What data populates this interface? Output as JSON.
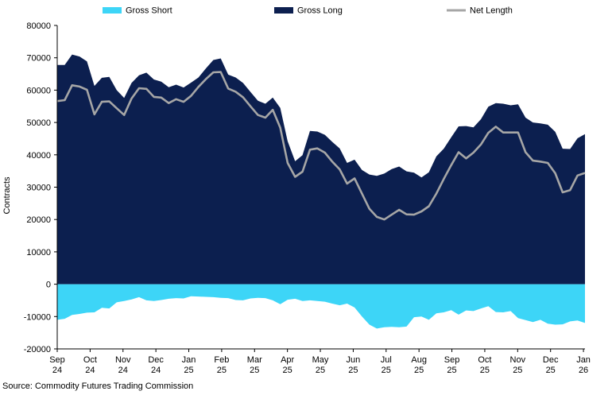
{
  "colors": {
    "gross_short": "#3dd5f7",
    "gross_long": "#0c1f4f",
    "net_length": "#a6a6a6"
  },
  "source": "Source: Commodity Futures Trading Commission",
  "chart_data": {
    "type": "area",
    "ylabel": "Contracts",
    "ylim": [
      -20000,
      80000
    ],
    "yticks": [
      80000,
      70000,
      60000,
      50000,
      40000,
      30000,
      20000,
      10000,
      0,
      -10000,
      -20000
    ],
    "xrange": [
      0,
      69
    ],
    "xticks": [
      {
        "i": 0,
        "line1": "Sep",
        "line2": "24"
      },
      {
        "i": 4.3,
        "line1": "Oct",
        "line2": "24"
      },
      {
        "i": 8.6,
        "line1": "Nov",
        "line2": "24"
      },
      {
        "i": 12.9,
        "line1": "Dec",
        "line2": "24"
      },
      {
        "i": 17.2,
        "line1": "Jan",
        "line2": "25"
      },
      {
        "i": 21.5,
        "line1": "Feb",
        "line2": "25"
      },
      {
        "i": 25.8,
        "line1": "Mar",
        "line2": "25"
      },
      {
        "i": 30.1,
        "line1": "Apr",
        "line2": "25"
      },
      {
        "i": 34.4,
        "line1": "May",
        "line2": "25"
      },
      {
        "i": 38.7,
        "line1": "Jun",
        "line2": "25"
      },
      {
        "i": 43.0,
        "line1": "Jul",
        "line2": "25"
      },
      {
        "i": 47.3,
        "line1": "Aug",
        "line2": "25"
      },
      {
        "i": 51.6,
        "line1": "Sep",
        "line2": "25"
      },
      {
        "i": 55.9,
        "line1": "Oct",
        "line2": "25"
      },
      {
        "i": 60.2,
        "line1": "Nov",
        "line2": "25"
      },
      {
        "i": 64.5,
        "line1": "Dec",
        "line2": "25"
      },
      {
        "i": 68.8,
        "line1": "Jan",
        "line2": "26"
      }
    ],
    "legend": [
      "Gross Short",
      "Gross Long",
      "Net Length"
    ],
    "series": [
      {
        "name": "Gross Long",
        "values": [
          67800,
          67800,
          71000,
          70400,
          68900,
          61300,
          63800,
          64100,
          60000,
          57600,
          62200,
          64600,
          65400,
          63300,
          62600,
          60900,
          61700,
          60800,
          62300,
          63900,
          66700,
          69300,
          69800,
          64800,
          63900,
          62200,
          59400,
          56700,
          55800,
          57700,
          54500,
          44200,
          38000,
          39900,
          47400,
          47200,
          46200,
          44000,
          42000,
          37500,
          38500,
          35300,
          33900,
          33500,
          34200,
          35600,
          36400,
          34900,
          34500,
          33000,
          34600,
          39500,
          41900,
          45400,
          48800,
          48900,
          48500,
          51000,
          54900,
          56000,
          55800,
          55300,
          55600,
          51500,
          50000,
          49700,
          49300,
          47100,
          41900,
          41800,
          45100,
          46400
        ]
      },
      {
        "name": "Gross Short",
        "values": [
          -11000,
          -10700,
          -9500,
          -9200,
          -8800,
          -8700,
          -7300,
          -7500,
          -5600,
          -5200,
          -4700,
          -4000,
          -5000,
          -5200,
          -4900,
          -4500,
          -4300,
          -4400,
          -3700,
          -3800,
          -3900,
          -4000,
          -4200,
          -4300,
          -4900,
          -5000,
          -4400,
          -4200,
          -4300,
          -5000,
          -6200,
          -4800,
          -4500,
          -5200,
          -5000,
          -5200,
          -5400,
          -6000,
          -6500,
          -6000,
          -7200,
          -10000,
          -12500,
          -13700,
          -13300,
          -13200,
          -13300,
          -13100,
          -10200,
          -10000,
          -11000,
          -9000,
          -8700,
          -8000,
          -9400,
          -8100,
          -8300,
          -7500,
          -6800,
          -8600,
          -8700,
          -8300,
          -10500,
          -11100,
          -11700,
          -11000,
          -12200,
          -12500,
          -12400,
          -11500,
          -11200,
          -12000
        ]
      },
      {
        "name": "Net Length",
        "values": [
          56600,
          56900,
          61500,
          61100,
          60100,
          52500,
          56400,
          56500,
          54400,
          52300,
          57400,
          60600,
          60400,
          57900,
          57700,
          56000,
          57200,
          56400,
          58200,
          61000,
          63400,
          65500,
          65600,
          60500,
          59500,
          57800,
          55000,
          52300,
          51500,
          53900,
          48400,
          37500,
          33200,
          34800,
          41600,
          42000,
          40700,
          37900,
          35500,
          31100,
          32700,
          28000,
          23300,
          20800,
          20000,
          21500,
          23000,
          21600,
          21500,
          22500,
          24100,
          28000,
          32500,
          36800,
          40800,
          38900,
          40700,
          43200,
          46800,
          48700,
          46900,
          46900,
          46900,
          40800,
          38200,
          37900,
          37500,
          34300,
          28400,
          29100,
          33600,
          34400
        ]
      }
    ]
  }
}
